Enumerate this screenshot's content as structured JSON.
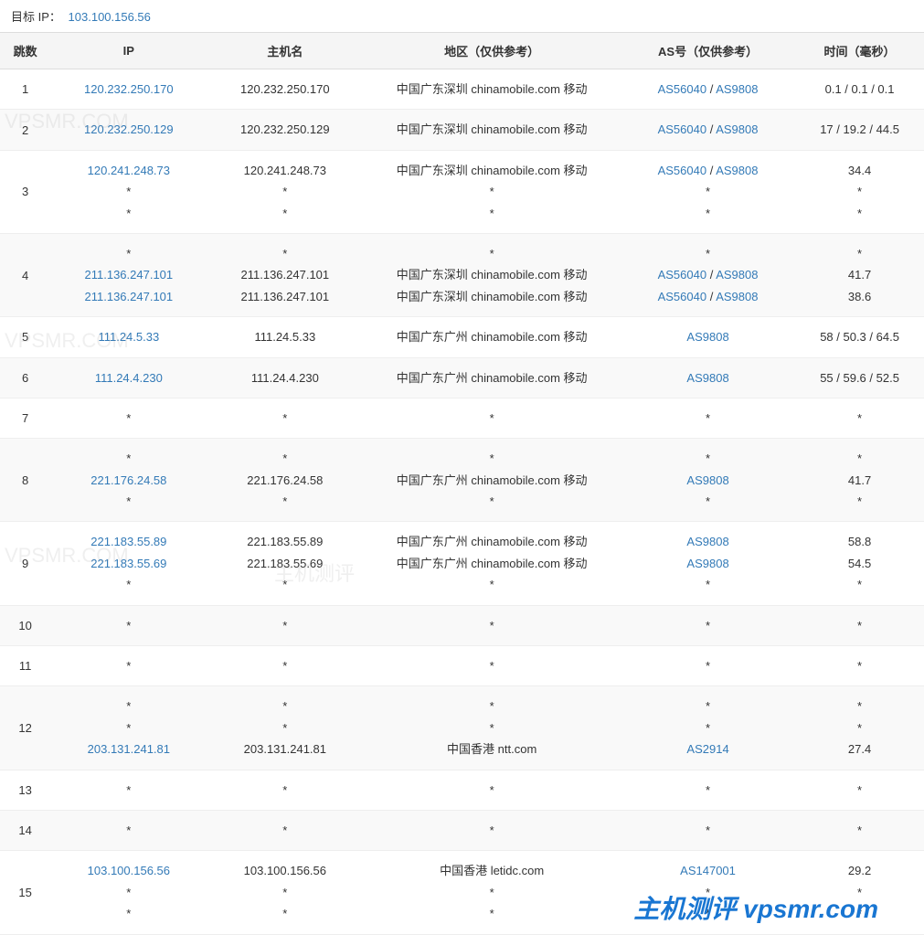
{
  "target_label": "目标 IP：",
  "target_ip": "103.100.156.56",
  "columns": [
    "跳数",
    "IP",
    "主机名",
    "地区（仅供参考）",
    "AS号（仅供参考）",
    "时间（毫秒）"
  ],
  "colors": {
    "link": "#337ab7",
    "header_bg": "#f5f5f5",
    "zebra_bg": "#f9f9f9",
    "border": "#ddd"
  },
  "watermark_bottom": "主机测评 vpsmr.com",
  "watermark_bg_texts": [
    "VPSMR.COM",
    "主机测评"
  ],
  "rows": [
    {
      "hop": "1",
      "zebra": false,
      "ip": [
        {
          "t": "120.232.250.170",
          "link": true
        }
      ],
      "host": [
        {
          "t": "120.232.250.170"
        }
      ],
      "region": [
        {
          "t": "中国广东深圳 chinamobile.com 移动"
        }
      ],
      "as": [
        {
          "parts": [
            {
              "t": "AS56040",
              "link": true
            },
            {
              "t": " / "
            },
            {
              "t": "AS9808",
              "link": true
            }
          ]
        }
      ],
      "time": [
        {
          "t": "0.1 / 0.1 / 0.1"
        }
      ]
    },
    {
      "hop": "2",
      "zebra": true,
      "ip": [
        {
          "t": "120.232.250.129",
          "link": true
        }
      ],
      "host": [
        {
          "t": "120.232.250.129"
        }
      ],
      "region": [
        {
          "t": "中国广东深圳 chinamobile.com 移动"
        }
      ],
      "as": [
        {
          "parts": [
            {
              "t": "AS56040",
              "link": true
            },
            {
              "t": " / "
            },
            {
              "t": "AS9808",
              "link": true
            }
          ]
        }
      ],
      "time": [
        {
          "t": "17 / 19.2 / 44.5"
        }
      ]
    },
    {
      "hop": "3",
      "zebra": false,
      "ip": [
        {
          "t": "120.241.248.73",
          "link": true
        },
        {
          "t": "*"
        },
        {
          "t": "*"
        }
      ],
      "host": [
        {
          "t": "120.241.248.73"
        },
        {
          "t": "*"
        },
        {
          "t": "*"
        }
      ],
      "region": [
        {
          "t": "中国广东深圳 chinamobile.com 移动"
        },
        {
          "t": "*"
        },
        {
          "t": "*"
        }
      ],
      "as": [
        {
          "parts": [
            {
              "t": "AS56040",
              "link": true
            },
            {
              "t": " / "
            },
            {
              "t": "AS9808",
              "link": true
            }
          ]
        },
        {
          "parts": [
            {
              "t": "*"
            }
          ]
        },
        {
          "parts": [
            {
              "t": "*"
            }
          ]
        }
      ],
      "time": [
        {
          "t": "34.4"
        },
        {
          "t": "*"
        },
        {
          "t": "*"
        }
      ]
    },
    {
      "hop": "4",
      "zebra": true,
      "ip": [
        {
          "t": "*"
        },
        {
          "t": "211.136.247.101",
          "link": true
        },
        {
          "t": "211.136.247.101",
          "link": true
        }
      ],
      "host": [
        {
          "t": "*"
        },
        {
          "t": "211.136.247.101"
        },
        {
          "t": "211.136.247.101"
        }
      ],
      "region": [
        {
          "t": "*"
        },
        {
          "t": "中国广东深圳 chinamobile.com 移动"
        },
        {
          "t": "中国广东深圳 chinamobile.com 移动"
        }
      ],
      "as": [
        {
          "parts": [
            {
              "t": "*"
            }
          ]
        },
        {
          "parts": [
            {
              "t": "AS56040",
              "link": true
            },
            {
              "t": " / "
            },
            {
              "t": "AS9808",
              "link": true
            }
          ]
        },
        {
          "parts": [
            {
              "t": "AS56040",
              "link": true
            },
            {
              "t": " / "
            },
            {
              "t": "AS9808",
              "link": true
            }
          ]
        }
      ],
      "time": [
        {
          "t": "*"
        },
        {
          "t": "41.7"
        },
        {
          "t": "38.6"
        }
      ]
    },
    {
      "hop": "5",
      "zebra": false,
      "ip": [
        {
          "t": "111.24.5.33",
          "link": true
        }
      ],
      "host": [
        {
          "t": "111.24.5.33"
        }
      ],
      "region": [
        {
          "t": "中国广东广州 chinamobile.com 移动"
        }
      ],
      "as": [
        {
          "parts": [
            {
              "t": "AS9808",
              "link": true
            }
          ]
        }
      ],
      "time": [
        {
          "t": "58 / 50.3 / 64.5"
        }
      ]
    },
    {
      "hop": "6",
      "zebra": true,
      "ip": [
        {
          "t": "111.24.4.230",
          "link": true
        }
      ],
      "host": [
        {
          "t": "111.24.4.230"
        }
      ],
      "region": [
        {
          "t": "中国广东广州 chinamobile.com 移动"
        }
      ],
      "as": [
        {
          "parts": [
            {
              "t": "AS9808",
              "link": true
            }
          ]
        }
      ],
      "time": [
        {
          "t": "55 / 59.6 / 52.5"
        }
      ]
    },
    {
      "hop": "7",
      "zebra": false,
      "ip": [
        {
          "t": "*"
        }
      ],
      "host": [
        {
          "t": "*"
        }
      ],
      "region": [
        {
          "t": "*"
        }
      ],
      "as": [
        {
          "parts": [
            {
              "t": "*"
            }
          ]
        }
      ],
      "time": [
        {
          "t": "*"
        }
      ]
    },
    {
      "hop": "8",
      "zebra": true,
      "ip": [
        {
          "t": "*"
        },
        {
          "t": "221.176.24.58",
          "link": true
        },
        {
          "t": "*"
        }
      ],
      "host": [
        {
          "t": "*"
        },
        {
          "t": "221.176.24.58"
        },
        {
          "t": "*"
        }
      ],
      "region": [
        {
          "t": "*"
        },
        {
          "t": "中国广东广州 chinamobile.com 移动"
        },
        {
          "t": "*"
        }
      ],
      "as": [
        {
          "parts": [
            {
              "t": "*"
            }
          ]
        },
        {
          "parts": [
            {
              "t": "AS9808",
              "link": true
            }
          ]
        },
        {
          "parts": [
            {
              "t": "*"
            }
          ]
        }
      ],
      "time": [
        {
          "t": "*"
        },
        {
          "t": "41.7"
        },
        {
          "t": "*"
        }
      ]
    },
    {
      "hop": "9",
      "zebra": false,
      "ip": [
        {
          "t": "221.183.55.89",
          "link": true
        },
        {
          "t": "221.183.55.69",
          "link": true
        },
        {
          "t": "*"
        }
      ],
      "host": [
        {
          "t": "221.183.55.89"
        },
        {
          "t": "221.183.55.69"
        },
        {
          "t": "*"
        }
      ],
      "region": [
        {
          "t": "中国广东广州 chinamobile.com 移动"
        },
        {
          "t": "中国广东广州 chinamobile.com 移动"
        },
        {
          "t": "*"
        }
      ],
      "as": [
        {
          "parts": [
            {
              "t": "AS9808",
              "link": true
            }
          ]
        },
        {
          "parts": [
            {
              "t": "AS9808",
              "link": true
            }
          ]
        },
        {
          "parts": [
            {
              "t": "*"
            }
          ]
        }
      ],
      "time": [
        {
          "t": "58.8"
        },
        {
          "t": "54.5"
        },
        {
          "t": "*"
        }
      ]
    },
    {
      "hop": "10",
      "zebra": true,
      "ip": [
        {
          "t": "*"
        }
      ],
      "host": [
        {
          "t": "*"
        }
      ],
      "region": [
        {
          "t": "*"
        }
      ],
      "as": [
        {
          "parts": [
            {
              "t": "*"
            }
          ]
        }
      ],
      "time": [
        {
          "t": "*"
        }
      ]
    },
    {
      "hop": "11",
      "zebra": false,
      "ip": [
        {
          "t": "*"
        }
      ],
      "host": [
        {
          "t": "*"
        }
      ],
      "region": [
        {
          "t": "*"
        }
      ],
      "as": [
        {
          "parts": [
            {
              "t": "*"
            }
          ]
        }
      ],
      "time": [
        {
          "t": "*"
        }
      ]
    },
    {
      "hop": "12",
      "zebra": true,
      "ip": [
        {
          "t": "*"
        },
        {
          "t": "*"
        },
        {
          "t": "203.131.241.81",
          "link": true
        }
      ],
      "host": [
        {
          "t": "*"
        },
        {
          "t": "*"
        },
        {
          "t": "203.131.241.81"
        }
      ],
      "region": [
        {
          "t": "*"
        },
        {
          "t": "*"
        },
        {
          "t": "中国香港 ntt.com"
        }
      ],
      "as": [
        {
          "parts": [
            {
              "t": "*"
            }
          ]
        },
        {
          "parts": [
            {
              "t": "*"
            }
          ]
        },
        {
          "parts": [
            {
              "t": "AS2914",
              "link": true
            }
          ]
        }
      ],
      "time": [
        {
          "t": "*"
        },
        {
          "t": "*"
        },
        {
          "t": "27.4"
        }
      ]
    },
    {
      "hop": "13",
      "zebra": false,
      "ip": [
        {
          "t": "*"
        }
      ],
      "host": [
        {
          "t": "*"
        }
      ],
      "region": [
        {
          "t": "*"
        }
      ],
      "as": [
        {
          "parts": [
            {
              "t": "*"
            }
          ]
        }
      ],
      "time": [
        {
          "t": "*"
        }
      ]
    },
    {
      "hop": "14",
      "zebra": true,
      "ip": [
        {
          "t": "*"
        }
      ],
      "host": [
        {
          "t": "*"
        }
      ],
      "region": [
        {
          "t": "*"
        }
      ],
      "as": [
        {
          "parts": [
            {
              "t": "*"
            }
          ]
        }
      ],
      "time": [
        {
          "t": "*"
        }
      ]
    },
    {
      "hop": "15",
      "zebra": false,
      "ip": [
        {
          "t": "103.100.156.56",
          "link": true
        },
        {
          "t": "*"
        },
        {
          "t": "*"
        }
      ],
      "host": [
        {
          "t": "103.100.156.56"
        },
        {
          "t": "*"
        },
        {
          "t": "*"
        }
      ],
      "region": [
        {
          "t": "中国香港 letidc.com"
        },
        {
          "t": "*"
        },
        {
          "t": "*"
        }
      ],
      "as": [
        {
          "parts": [
            {
              "t": "AS147001",
              "link": true
            }
          ]
        },
        {
          "parts": [
            {
              "t": "*"
            }
          ]
        },
        {
          "parts": [
            {
              "t": "*"
            }
          ]
        }
      ],
      "time": [
        {
          "t": "29.2"
        },
        {
          "t": "*"
        },
        {
          "t": "*"
        }
      ]
    }
  ]
}
